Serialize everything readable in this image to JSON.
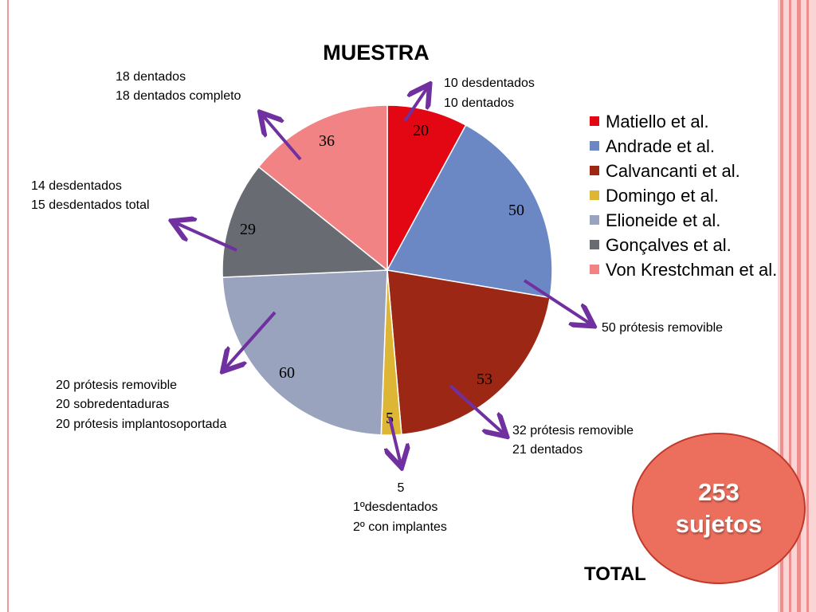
{
  "chart_data": {
    "type": "pie",
    "title": "MUESTRA",
    "categories": [
      "Matiello et al.",
      "Andrade et al.",
      "Calvancanti et al.",
      "Domingo et al.",
      "Elioneide et al.",
      "Gonçalves et al.",
      "Von Krestchman et al."
    ],
    "values": [
      20,
      50,
      53,
      5,
      60,
      29,
      36
    ],
    "data_labels": [
      "20",
      "50",
      "53",
      "5",
      "60",
      "29",
      "36"
    ],
    "colors": [
      "#e30613",
      "#6c88c4",
      "#9c2714",
      "#dcb634",
      "#9aa3bd",
      "#686c72",
      "#f28385"
    ],
    "legend_position": "right",
    "start_angle_deg": 0,
    "direction": "clockwise",
    "annotations": [
      [
        "10 desdentados",
        "10 dentados"
      ],
      [
        "50 prótesis removible"
      ],
      [
        "32 prótesis removible",
        "21 dentados"
      ],
      [
        "5",
        "1ºdesdentados",
        "2º con implantes"
      ],
      [
        "20 prótesis removible",
        "20 sobredentaduras",
        "20 prótesis implantosoportada"
      ],
      [
        "14 desdentados",
        "15 desdentados total"
      ],
      [
        "18 dentados",
        "18 dentados completo"
      ]
    ],
    "arrow_color": "#7030a0"
  },
  "total": {
    "count": "253",
    "unit": "sujetos",
    "label": "TOTAL"
  }
}
